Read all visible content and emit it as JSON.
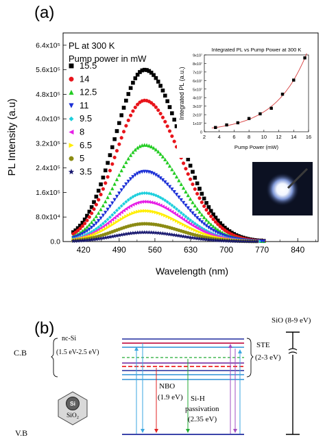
{
  "panel_a": {
    "label": "(a)",
    "chart_data": {
      "type": "scatter",
      "xlabel": "Wavelength (nm)",
      "ylabel": "PL Intensity (a.u)",
      "xlim": [
        380,
        880
      ],
      "ylim": [
        0,
        680000
      ],
      "xticks": [
        "420",
        "490",
        "560",
        "630",
        "700",
        "770",
        "840"
      ],
      "yticks": [
        "0.0",
        "8.0x10⁴",
        "1.6x10⁵",
        "2.4x10⁵",
        "3.2x10⁵",
        "4.0x10⁵",
        "4.8x10⁵",
        "5.6x10⁵",
        "6.4x10⁵"
      ],
      "legend_heading": [
        "PL at 300 K",
        "Pump power in mW"
      ],
      "peak_wavelength_nm": 540,
      "series": [
        {
          "name": "15.5",
          "peak": 560000,
          "color": "#000000",
          "marker": "square"
        },
        {
          "name": "14",
          "peak": 460000,
          "color": "#e8141b",
          "marker": "circle"
        },
        {
          "name": "12.5",
          "peak": 315000,
          "color": "#22cc22",
          "marker": "triangle-up"
        },
        {
          "name": "11",
          "peak": 228000,
          "color": "#1b2fd6",
          "marker": "triangle-down"
        },
        {
          "name": "9.5",
          "peak": 158000,
          "color": "#1ecfdc",
          "marker": "diamond"
        },
        {
          "name": "8",
          "peak": 130000,
          "color": "#e61ee6",
          "marker": "triangle-left"
        },
        {
          "name": "6.5",
          "peak": 100000,
          "color": "#ffee00",
          "marker": "triangle-right"
        },
        {
          "name": "5",
          "peak": 58000,
          "color": "#8b8b13",
          "marker": "circle"
        },
        {
          "name": "3.5",
          "peak": 30000,
          "color": "#16166e",
          "marker": "star"
        }
      ]
    },
    "inset": {
      "title": "Integrated PL vs Pump Power at 300 K",
      "xlabel": "Pump Power (mW)",
      "ylabel": "Integrated PL (a.u.)",
      "xticks": [
        "2",
        "4",
        "6",
        "8",
        "10",
        "12",
        "14",
        "16"
      ],
      "yticks": [
        "0",
        "1x10⁷",
        "2x10⁷",
        "3x10⁷",
        "4x10⁷",
        "5x10⁷",
        "6x10⁷",
        "7x10⁷",
        "8x10⁷",
        "9x10⁷"
      ],
      "x": [
        3.5,
        5,
        6.5,
        8,
        9.5,
        11,
        12.5,
        14,
        15.5
      ],
      "y": [
        0.5,
        0.8,
        1.05,
        1.55,
        2.1,
        2.75,
        4.4,
        6.05,
        8.65
      ]
    }
  },
  "panel_b": {
    "label": "(b)",
    "cb": "C.B",
    "vb": "V.B",
    "nc_si": "nc-Si",
    "nc_si_range": "(1.5 eV-2.5 eV)",
    "ste": "STE",
    "ste_range": "(2-3 eV)",
    "sio": "SiO (8-9 eV)",
    "nbo": "NBO",
    "nbo_value": "(1.9 eV)",
    "sih": "Si-H",
    "sih_passivation": "passivation",
    "sih_value": "(2.35 eV)",
    "si": "Si",
    "sio2": "SiO₂"
  }
}
